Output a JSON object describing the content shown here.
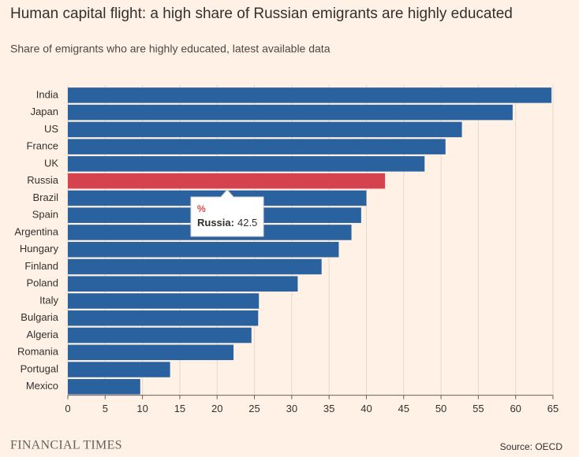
{
  "chart_data": {
    "type": "barh",
    "title": "Human capital flight: a high share of Russian emigrants are highly educated",
    "subtitle": "Share of emigrants who are highly educated, latest available data",
    "categories": [
      "India",
      "Japan",
      "US",
      "France",
      "UK",
      "Russia",
      "Brazil",
      "Spain",
      "Argentina",
      "Hungary",
      "Finland",
      "Poland",
      "Italy",
      "Bulgaria",
      "Algeria",
      "Romania",
      "Portugal",
      "Mexico"
    ],
    "values": [
      64.8,
      59.6,
      52.8,
      50.6,
      47.8,
      42.5,
      40.0,
      39.3,
      38.0,
      36.3,
      34.0,
      30.8,
      25.6,
      25.5,
      24.6,
      22.2,
      13.7,
      9.7
    ],
    "colors": [
      "#2a62a0",
      "#2a62a0",
      "#2a62a0",
      "#2a62a0",
      "#2a62a0",
      "#d5434f",
      "#2a62a0",
      "#2a62a0",
      "#2a62a0",
      "#2a62a0",
      "#2a62a0",
      "#2a62a0",
      "#2a62a0",
      "#2a62a0",
      "#2a62a0",
      "#2a62a0",
      "#2a62a0",
      "#2a62a0"
    ],
    "xlim": [
      0,
      65
    ],
    "xticks": [
      0,
      5,
      10,
      15,
      20,
      25,
      30,
      35,
      40,
      45,
      50,
      55,
      60,
      65
    ],
    "grid": true,
    "tooltip": {
      "index": 5,
      "unit": "%"
    },
    "brand": "FINANCIAL TIMES",
    "source": "Source: OECD"
  }
}
